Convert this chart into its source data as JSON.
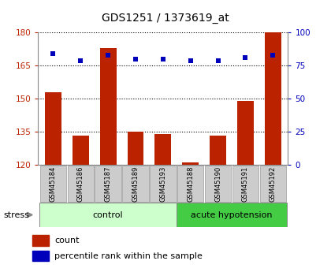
{
  "title": "GDS1251 / 1373619_at",
  "samples": [
    "GSM45184",
    "GSM45186",
    "GSM45187",
    "GSM45189",
    "GSM45193",
    "GSM45188",
    "GSM45190",
    "GSM45191",
    "GSM45192"
  ],
  "counts": [
    153,
    133,
    173,
    135,
    134,
    121,
    133,
    149,
    183
  ],
  "percentiles": [
    84,
    79,
    83,
    80,
    80,
    79,
    79,
    81,
    83
  ],
  "control_indices": [
    0,
    1,
    2,
    3,
    4
  ],
  "acute_indices": [
    5,
    6,
    7,
    8
  ],
  "ylim_left": [
    120,
    180
  ],
  "ylim_right": [
    0,
    100
  ],
  "yticks_left": [
    120,
    135,
    150,
    165,
    180
  ],
  "yticks_right": [
    0,
    25,
    50,
    75,
    100
  ],
  "bar_color": "#bb2200",
  "dot_color": "#0000bb",
  "bar_bottom": 120,
  "control_label": "control",
  "acute_label": "acute hypotension",
  "stress_label": "stress",
  "legend_count": "count",
  "legend_percentile": "percentile rank within the sample",
  "group_bg_control": "#ccffcc",
  "group_bg_acute": "#44cc44",
  "xlabel_area_bg": "#cccccc",
  "grid_color": "#000000"
}
